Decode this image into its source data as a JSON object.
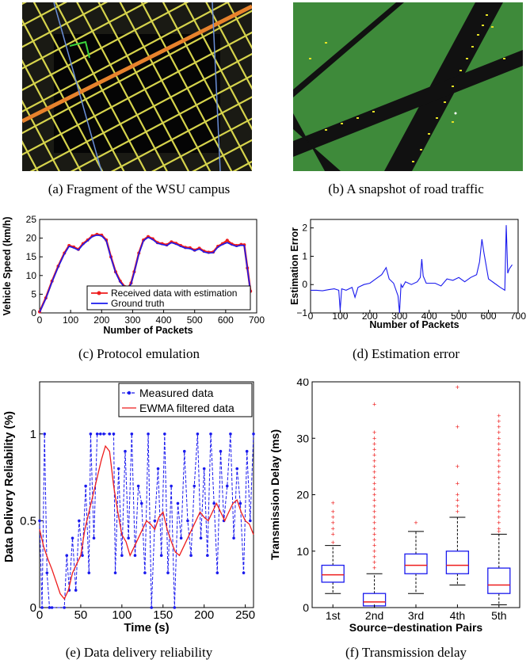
{
  "captions": {
    "a": "(a) Fragment of the WSU campus",
    "b": "(b) A snapshot of road traffic",
    "c": "(c) Protocol emulation",
    "d": "(d) Estimation error",
    "e": "(e) Data delivery reliability",
    "f": "(f) Transmission delay"
  },
  "colors": {
    "map_background": "#1a1a14",
    "map_roads": "#d6d44c",
    "map_highlight": "#e7822c",
    "traffic_background": "#3e8a3a",
    "traffic_roads": "#111111",
    "traffic_vehicles": "#e6e224",
    "red": "#ee1c1c",
    "blue": "#1a1aee"
  },
  "chart_data": [
    {
      "id": "c",
      "type": "line",
      "xlabel": "Number of Packets",
      "ylabel": "Vehicle Speed (km/h)",
      "xlim": [
        0,
        700
      ],
      "ylim": [
        0,
        25
      ],
      "xticks": [
        "0",
        "100",
        "200",
        "300",
        "400",
        "500",
        "600",
        "700"
      ],
      "yticks": [
        "0",
        "5",
        "10",
        "15",
        "20",
        "25"
      ],
      "legend_position": "bottom-right",
      "series": [
        {
          "name": "Received data with estimation",
          "color": "#ee1c1c",
          "marker": "dot",
          "x": [
            0,
            20,
            40,
            60,
            80,
            95,
            110,
            125,
            140,
            155,
            170,
            185,
            200,
            215,
            230,
            245,
            260,
            275,
            285,
            295,
            305,
            320,
            335,
            350,
            365,
            380,
            395,
            410,
            425,
            440,
            455,
            470,
            485,
            500,
            515,
            530,
            545,
            560,
            575,
            590,
            605,
            620,
            635,
            650,
            660,
            670,
            680
          ],
          "y": [
            0.3,
            4,
            8.5,
            12.5,
            16,
            18,
            17.6,
            17,
            18.5,
            19.5,
            20.6,
            21,
            20.8,
            19.5,
            15,
            11,
            8.5,
            7,
            6.6,
            8,
            11,
            16,
            19.5,
            20.4,
            19.8,
            18.8,
            18.5,
            18.2,
            19,
            18.6,
            18,
            17.5,
            17.4,
            16.8,
            17.3,
            16.5,
            16.2,
            16.3,
            17.8,
            18.5,
            19.4,
            18.4,
            18,
            18.3,
            18.2,
            12,
            5.8
          ]
        },
        {
          "name": "Ground truth",
          "color": "#1a1aee",
          "marker": "none",
          "x": [
            0,
            20,
            40,
            60,
            80,
            95,
            110,
            125,
            140,
            155,
            170,
            185,
            200,
            215,
            230,
            245,
            260,
            275,
            285,
            295,
            305,
            320,
            335,
            350,
            365,
            380,
            395,
            410,
            425,
            440,
            455,
            470,
            485,
            500,
            515,
            530,
            545,
            560,
            575,
            590,
            605,
            620,
            635,
            650,
            660,
            670,
            680
          ],
          "y": [
            0.2,
            3.8,
            8.3,
            12.3,
            15.8,
            17.8,
            17.4,
            16.8,
            18.3,
            19.3,
            20.4,
            20.8,
            20.6,
            19.3,
            14.8,
            10.8,
            8.2,
            6.8,
            6.4,
            7.8,
            10.8,
            15.8,
            19.3,
            20.2,
            19.6,
            18.6,
            18.3,
            18,
            18.8,
            18.4,
            17.8,
            17.3,
            17.2,
            16.6,
            17.1,
            16.3,
            16,
            16.1,
            17.6,
            18.3,
            18.8,
            18.2,
            17.8,
            18.1,
            18,
            11.8,
            5.6
          ]
        }
      ]
    },
    {
      "id": "d",
      "type": "line",
      "xlabel": "Number of Packets",
      "ylabel": "Estimation Error",
      "xlim": [
        0,
        700
      ],
      "ylim": [
        -1,
        2.3
      ],
      "xticks": [
        "0",
        "100",
        "200",
        "300",
        "400",
        "500",
        "600",
        "700"
      ],
      "yticks": [
        "−1",
        "0",
        "1",
        "2"
      ],
      "series": [
        {
          "name": "",
          "color": "#1a1aee",
          "x": [
            0,
            20,
            40,
            60,
            80,
            95,
            100,
            105,
            120,
            140,
            150,
            160,
            180,
            200,
            220,
            240,
            255,
            265,
            280,
            295,
            300,
            305,
            310,
            320,
            340,
            360,
            370,
            375,
            380,
            390,
            420,
            440,
            460,
            480,
            500,
            520,
            540,
            560,
            570,
            578,
            585,
            600,
            620,
            640,
            655,
            660,
            665,
            670,
            680
          ],
          "y": [
            -0.2,
            -0.2,
            -0.22,
            -0.18,
            -0.15,
            -0.2,
            -0.9,
            -0.15,
            -0.2,
            -0.1,
            -0.45,
            -0.1,
            0,
            0.05,
            0.2,
            0.35,
            0.6,
            0.2,
            0.05,
            -0.4,
            -1,
            0,
            -0.1,
            0.1,
            0,
            0.1,
            0.25,
            0.9,
            0.3,
            0.05,
            0.05,
            -0.05,
            0.2,
            0.15,
            0.25,
            0.1,
            0.25,
            0.35,
            0.8,
            1.6,
            1.1,
            0.2,
            0.05,
            -0.1,
            -0.2,
            2.1,
            0.4,
            0.55,
            0.7
          ]
        }
      ]
    },
    {
      "id": "e",
      "type": "line",
      "xlabel": "Time (s)",
      "ylabel": "Data Delivery Reliability (%)",
      "xlim": [
        0,
        260
      ],
      "ylim": [
        0,
        1.3
      ],
      "xticks": [
        "0",
        "50",
        "100",
        "150",
        "200",
        "250"
      ],
      "yticks": [
        "0",
        "0.5",
        "1"
      ],
      "legend_position": "top-right",
      "series": [
        {
          "name": "Measured data",
          "color": "#1a1aee",
          "marker": "dot",
          "x": [
            0,
            3,
            6,
            9,
            12,
            15,
            30,
            33,
            36,
            40,
            44,
            48,
            52,
            56,
            60,
            62,
            66,
            70,
            74,
            78,
            85,
            90,
            92,
            96,
            100,
            104,
            108,
            112,
            116,
            120,
            124,
            128,
            132,
            136,
            140,
            144,
            148,
            152,
            156,
            160,
            164,
            168,
            172,
            176,
            180,
            184,
            188,
            192,
            196,
            200,
            204,
            208,
            212,
            216,
            220,
            224,
            228,
            232,
            236,
            240,
            244,
            248,
            252,
            256,
            260
          ],
          "y": [
            0.5,
            0,
            1,
            0.2,
            0,
            0,
            0,
            0.3,
            0.1,
            0.4,
            0.1,
            0.5,
            0.3,
            0.7,
            0.2,
            1,
            0.4,
            1,
            1,
            1,
            1,
            1,
            0.2,
            0.8,
            0.3,
            0.9,
            0.4,
            1,
            0.3,
            0.7,
            0.6,
            0.2,
            1,
            0,
            0.5,
            0.8,
            0.3,
            1,
            0.2,
            0.7,
            0,
            0.6,
            0.4,
            0.9,
            0.5,
            0.3,
            0.7,
            1,
            0.4,
            0.8,
            0.3,
            1,
            0.6,
            0.2,
            0.9,
            0.5,
            0.7,
            1,
            0.4,
            0.8,
            0.6,
            0.2,
            0.9,
            0.5,
            1
          ]
        },
        {
          "name": "EWMA filtered data",
          "color": "#ee1c1c",
          "marker": "none",
          "x": [
            0,
            5,
            10,
            15,
            20,
            25,
            30,
            35,
            40,
            45,
            50,
            55,
            60,
            65,
            70,
            75,
            80,
            85,
            90,
            95,
            100,
            105,
            110,
            115,
            120,
            125,
            130,
            135,
            140,
            145,
            150,
            155,
            160,
            165,
            170,
            175,
            180,
            185,
            190,
            195,
            200,
            205,
            210,
            215,
            220,
            225,
            230,
            235,
            240,
            245,
            250,
            255,
            260
          ],
          "y": [
            0.45,
            0.35,
            0.28,
            0.22,
            0.15,
            0.08,
            0.05,
            0.1,
            0.2,
            0.25,
            0.3,
            0.45,
            0.55,
            0.65,
            0.75,
            0.85,
            0.93,
            0.9,
            0.7,
            0.55,
            0.42,
            0.38,
            0.3,
            0.35,
            0.4,
            0.45,
            0.5,
            0.48,
            0.45,
            0.52,
            0.55,
            0.45,
            0.38,
            0.32,
            0.3,
            0.35,
            0.4,
            0.45,
            0.5,
            0.55,
            0.52,
            0.5,
            0.55,
            0.6,
            0.55,
            0.5,
            0.55,
            0.6,
            0.62,
            0.55,
            0.5,
            0.48,
            0.42
          ]
        }
      ]
    },
    {
      "id": "f",
      "type": "box",
      "xlabel": "Source−destination Pairs",
      "ylabel": "Transmission Delay (ms)",
      "ylim": [
        0,
        40
      ],
      "yticks": [
        "0",
        "10",
        "20",
        "30",
        "40"
      ],
      "categories": [
        "1st",
        "2nd",
        "3rd",
        "4th",
        "5th"
      ],
      "box_color": "#1a1aee",
      "median_color": "#ee1c1c",
      "outlier_color": "#ee1c1c",
      "boxes": [
        {
          "whisker_low": 2.5,
          "q1": 4.5,
          "median": 5.8,
          "q3": 7.5,
          "whisker_high": 11,
          "outliers": [
            11.5,
            13,
            14,
            15,
            16,
            17,
            18.5
          ]
        },
        {
          "whisker_low": 0,
          "q1": 0.3,
          "median": 1,
          "q3": 2.5,
          "whisker_high": 6,
          "outliers": [
            7,
            8,
            9,
            10,
            11,
            12,
            13,
            14,
            15,
            16,
            17,
            18,
            19,
            20,
            21,
            22,
            23,
            24,
            25,
            26,
            27,
            28,
            29,
            30,
            31,
            36
          ]
        },
        {
          "whisker_low": 2.5,
          "q1": 6,
          "median": 7.5,
          "q3": 9.5,
          "whisker_high": 13.5,
          "outliers": [
            15
          ]
        },
        {
          "whisker_low": 4,
          "q1": 6,
          "median": 7.5,
          "q3": 10,
          "whisker_high": 16,
          "outliers": [
            17,
            18,
            19,
            20,
            22,
            25,
            32,
            39
          ]
        },
        {
          "whisker_low": 0.5,
          "q1": 2.5,
          "median": 4,
          "q3": 7,
          "whisker_high": 13,
          "outliers": [
            13.5,
            14,
            15,
            16,
            17,
            18,
            19,
            20,
            21,
            22,
            23,
            24,
            25,
            26,
            27,
            28,
            29,
            30,
            31,
            32,
            33,
            34
          ]
        }
      ]
    }
  ]
}
